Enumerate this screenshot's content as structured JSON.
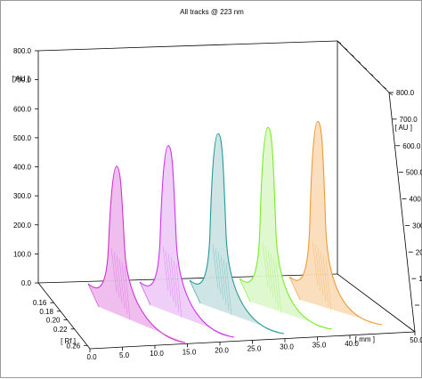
{
  "chart_data": {
    "type": "area",
    "title": "All tracks @ 223 nm",
    "y_axis": {
      "label": "[ AU ]",
      "range": [
        0,
        800
      ],
      "ticks": [
        "0.0",
        "100.0",
        "200.0",
        "300.0",
        "400.0",
        "500.0",
        "600.0",
        "700.0",
        "800.0"
      ]
    },
    "x_axis": {
      "label": "[ mm ]",
      "range": [
        0,
        50
      ],
      "ticks": [
        "0.0",
        "5.0",
        "10.0",
        "15.0",
        "20.0",
        "25.0",
        "30.0",
        "35.0",
        "40.0",
        "50.0"
      ]
    },
    "depth_axis": {
      "label": "[ Rf ]",
      "ticks": [
        "0.16",
        "0.18",
        "0.20",
        "0.22",
        "0.26"
      ]
    },
    "grid": false,
    "series": [
      {
        "track": 1,
        "color": "#cc33cc",
        "fill": "#eebbee",
        "peak_position_mm": 4.5,
        "peak_height_au": 405
      },
      {
        "track": 2,
        "color": "#cc33ee",
        "fill": "#eeccf8",
        "peak_position_mm": 4.5,
        "peak_height_au": 470
      },
      {
        "track": 3,
        "color": "#229999",
        "fill": "#cce4e4",
        "peak_position_mm": 4.5,
        "peak_height_au": 505
      },
      {
        "track": 4,
        "color": "#77ee22",
        "fill": "#ddf8cc",
        "peak_position_mm": 4.5,
        "peak_height_au": 520
      },
      {
        "track": 5,
        "color": "#ee9933",
        "fill": "#fbdcbb",
        "peak_position_mm": 4.5,
        "peak_height_au": 535
      }
    ]
  }
}
